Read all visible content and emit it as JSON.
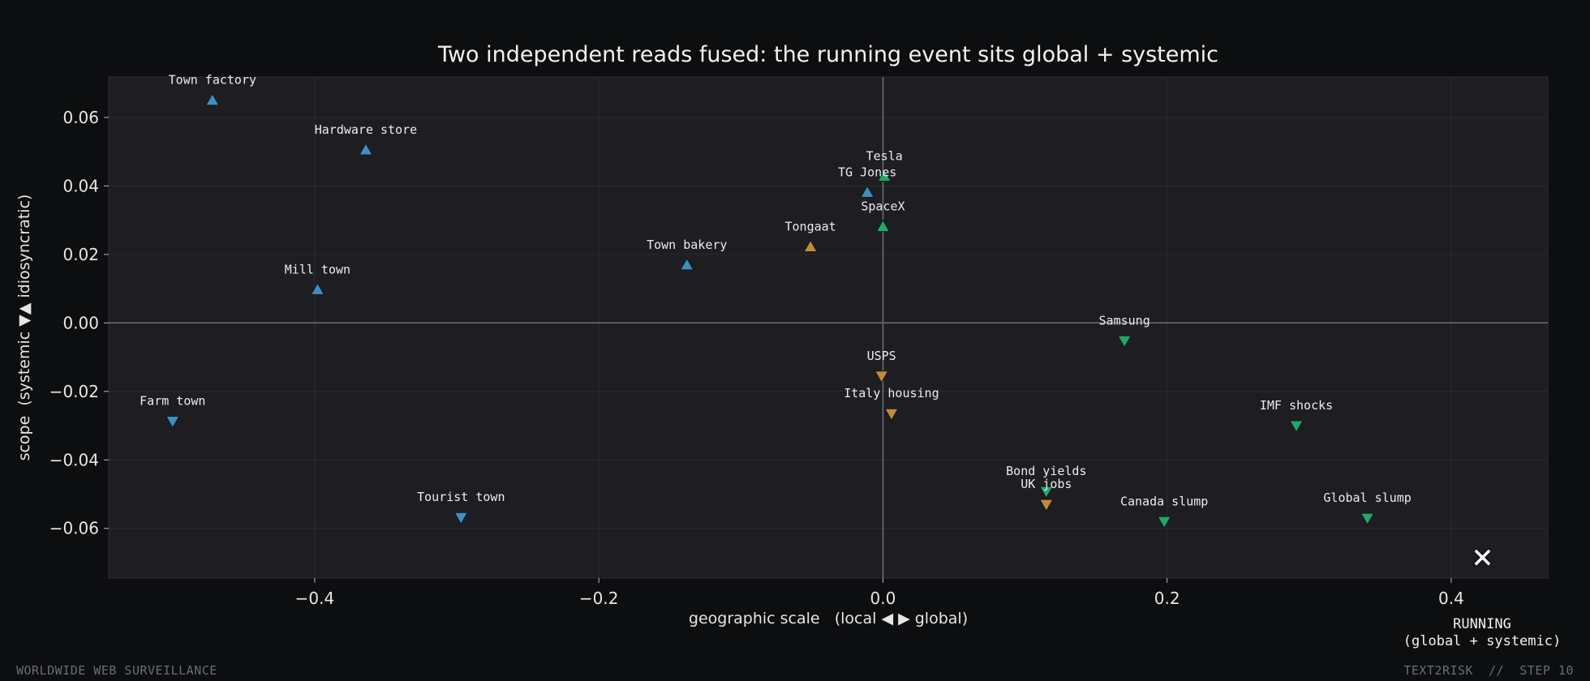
{
  "chart_data": {
    "type": "scatter",
    "title": "Two independent reads fused: the running event sits global + systemic",
    "xlabel": "geographic scale   (local ◀ ▶ global)",
    "ylabel": "scope  (systemic ▼▲ idiosyncratic)",
    "xlim": [
      -0.545,
      0.468
    ],
    "ylim": [
      -0.0745,
      0.0718
    ],
    "xticks": [
      -0.4,
      -0.2,
      0.0,
      0.2,
      0.4
    ],
    "xtick_labels": [
      "−0.4",
      "−0.2",
      "0.0",
      "0.2",
      "0.4"
    ],
    "yticks": [
      -0.06,
      -0.04,
      -0.02,
      0.0,
      0.02,
      0.04,
      0.06
    ],
    "ytick_labels": [
      "−0.06",
      "−0.04",
      "−0.02",
      "0.00",
      "0.02",
      "0.04",
      "0.06"
    ],
    "grid": true,
    "colors": {
      "blue": "#3d8fc1",
      "green": "#20a86b",
      "orange": "#c48a3c"
    },
    "points": [
      {
        "label": "Town factory",
        "x": -0.472,
        "y": 0.065,
        "marker": "up",
        "color": "blue"
      },
      {
        "label": "Hardware store",
        "x": -0.364,
        "y": 0.0505,
        "marker": "up",
        "color": "blue"
      },
      {
        "label": "Mill town",
        "x": -0.398,
        "y": 0.0097,
        "marker": "up",
        "color": "blue"
      },
      {
        "label": "Town bakery",
        "x": -0.138,
        "y": 0.0169,
        "marker": "up",
        "color": "blue"
      },
      {
        "label": "Tongaat",
        "x": -0.051,
        "y": 0.0222,
        "marker": "up",
        "color": "orange"
      },
      {
        "label": "TG Jones",
        "x": -0.011,
        "y": 0.0381,
        "marker": "up",
        "color": "blue"
      },
      {
        "label": "Tesla",
        "x": 0.001,
        "y": 0.0428,
        "marker": "up",
        "color": "green"
      },
      {
        "label": "SpaceX",
        "x": 0.0,
        "y": 0.0281,
        "marker": "up",
        "color": "green"
      },
      {
        "label": "Farm town",
        "x": -0.5,
        "y": -0.0287,
        "marker": "down",
        "color": "blue"
      },
      {
        "label": "Tourist town",
        "x": -0.297,
        "y": -0.0568,
        "marker": "down",
        "color": "blue"
      },
      {
        "label": "USPS",
        "x": -0.001,
        "y": -0.0155,
        "marker": "down",
        "color": "orange"
      },
      {
        "label": "Italy housing",
        "x": 0.006,
        "y": -0.0265,
        "marker": "down",
        "color": "orange"
      },
      {
        "label": "Samsung",
        "x": 0.17,
        "y": -0.0052,
        "marker": "down",
        "color": "green"
      },
      {
        "label": "Bond yields",
        "x": 0.115,
        "y": -0.0492,
        "marker": "down",
        "color": "green"
      },
      {
        "label": "UK jobs",
        "x": 0.115,
        "y": -0.053,
        "marker": "down",
        "color": "orange"
      },
      {
        "label": "Canada slump",
        "x": 0.198,
        "y": -0.058,
        "marker": "down",
        "color": "green"
      },
      {
        "label": "IMF shocks",
        "x": 0.291,
        "y": -0.03,
        "marker": "down",
        "color": "green"
      },
      {
        "label": "Global slump",
        "x": 0.341,
        "y": -0.057,
        "marker": "down",
        "color": "green"
      }
    ],
    "running": {
      "x": 0.422,
      "y": -0.0685,
      "label_line1": "RUNNING",
      "label_line2": "(global + systemic)"
    }
  },
  "footer": {
    "left": "WORLDWIDE WEB SURVEILLANCE",
    "right": "TEXT2RISK  //  STEP 10"
  }
}
